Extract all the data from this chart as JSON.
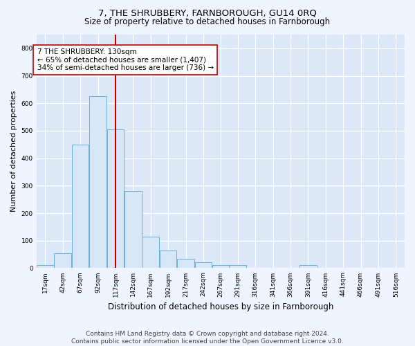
{
  "title": "7, THE SHRUBBERY, FARNBOROUGH, GU14 0RQ",
  "subtitle": "Size of property relative to detached houses in Farnborough",
  "xlabel": "Distribution of detached houses by size in Farnborough",
  "ylabel": "Number of detached properties",
  "footer_line1": "Contains HM Land Registry data © Crown copyright and database right 2024.",
  "footer_line2": "Contains public sector information licensed under the Open Government Licence v3.0.",
  "bar_color": "#d6e8f7",
  "bar_edge_color": "#6aaed6",
  "fig_bg_color": "#f0f4ff",
  "axes_bg_color": "#dce8f8",
  "grid_color": "#ffffff",
  "vline_x": 130,
  "vline_color": "#bb0000",
  "annotation_text": "7 THE SHRUBBERY: 130sqm\n← 65% of detached houses are smaller (1,407)\n34% of semi-detached houses are larger (736) →",
  "annotation_box_facecolor": "#ffffff",
  "annotation_box_edgecolor": "#bb0000",
  "bin_starts": [
    17,
    42,
    67,
    92,
    117,
    142,
    167,
    192,
    217,
    242,
    267,
    291,
    316,
    341,
    366,
    391,
    416,
    441,
    466,
    491,
    516
  ],
  "bin_counts": [
    10,
    55,
    450,
    625,
    505,
    280,
    115,
    63,
    35,
    20,
    10,
    10,
    0,
    0,
    0,
    10,
    0,
    0,
    0,
    0,
    0
  ],
  "bin_width": 25,
  "ylim": [
    0,
    850
  ],
  "yticks": [
    0,
    100,
    200,
    300,
    400,
    500,
    600,
    700,
    800
  ],
  "figsize": [
    6.0,
    5.0
  ],
  "dpi": 100,
  "title_fontsize": 9.5,
  "subtitle_fontsize": 8.5,
  "ylabel_fontsize": 8,
  "xlabel_fontsize": 8.5,
  "tick_fontsize": 6.5,
  "footer_fontsize": 6.5,
  "annotation_fontsize": 7.5
}
